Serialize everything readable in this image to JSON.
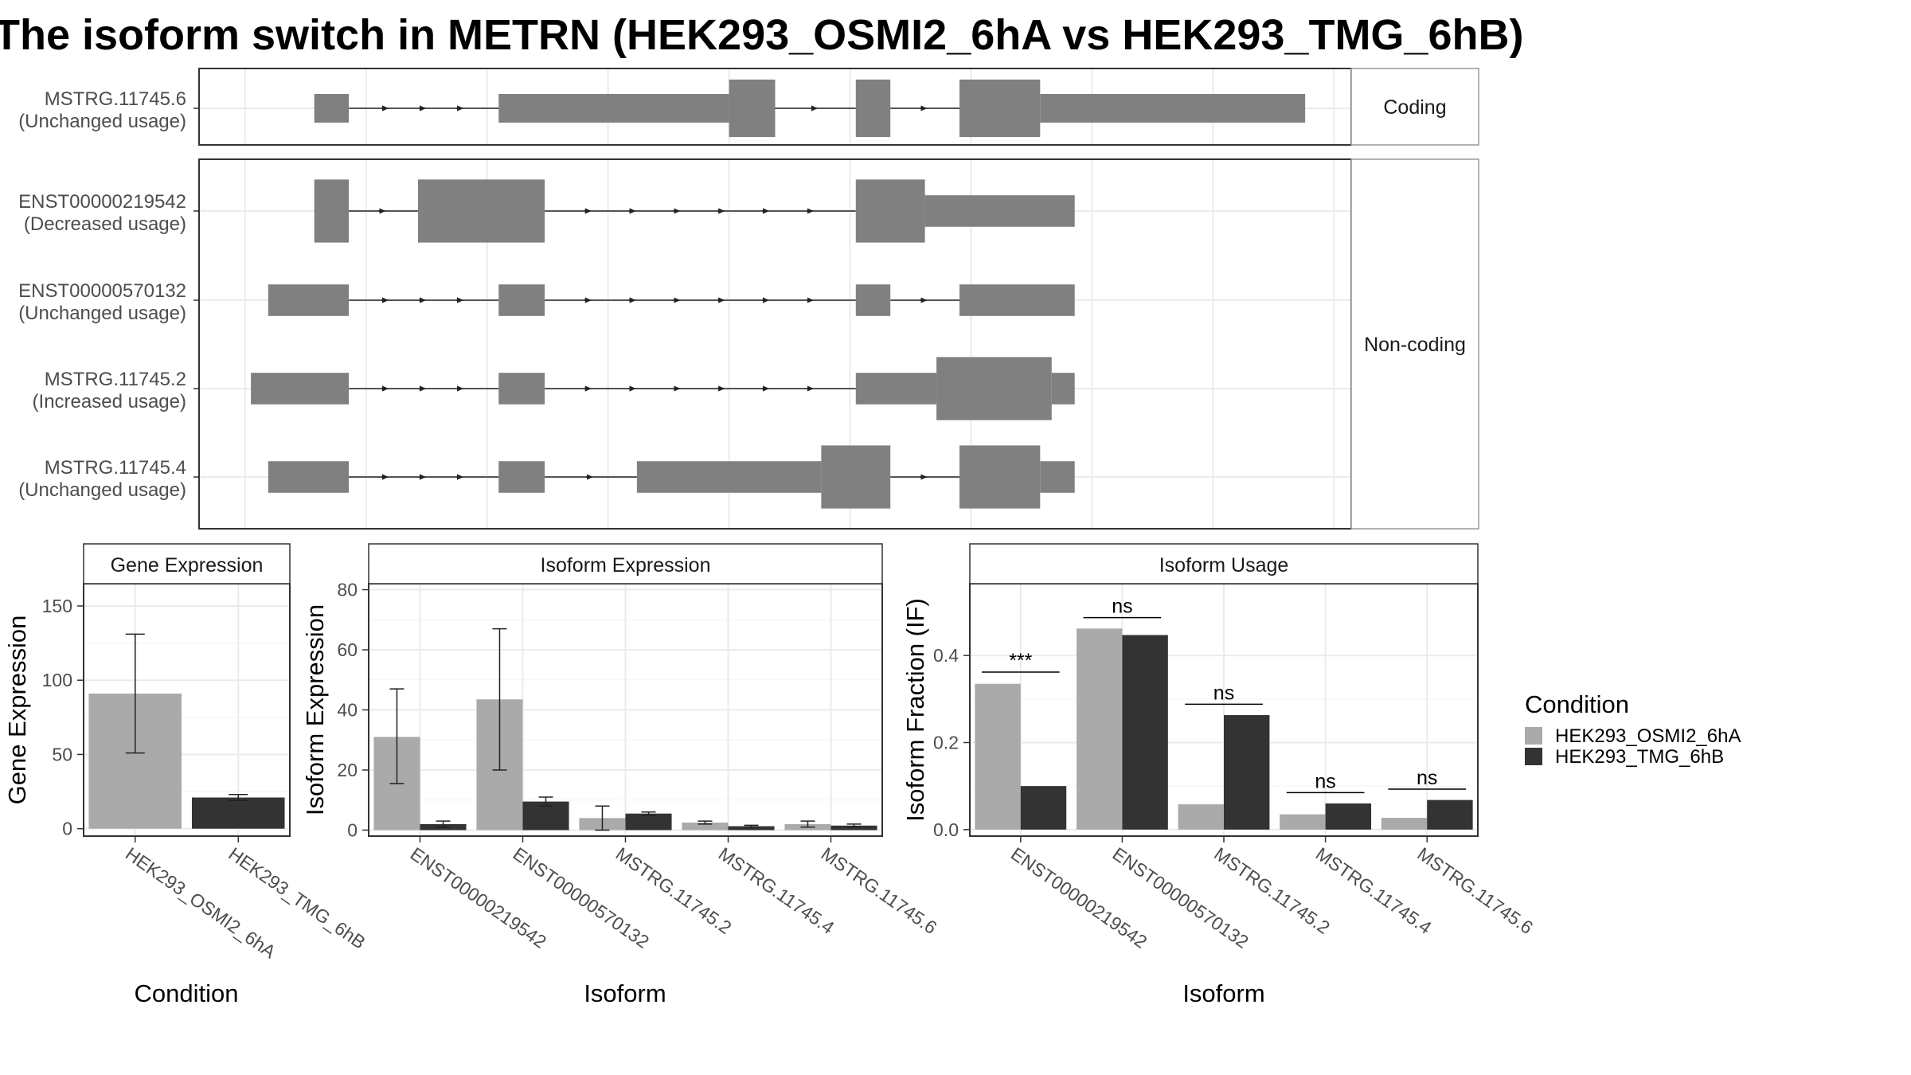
{
  "title": "The isoform switch in METRN (HEK293_OSMI2_6hA vs HEK293_TMG_6hB)",
  "colors": {
    "cond_a": "#aaaaaa",
    "cond_b": "#333333",
    "exon": "#808080"
  },
  "legend": {
    "title": "Condition",
    "items": [
      "HEK293_OSMI2_6hA",
      "HEK293_TMG_6hB"
    ]
  },
  "structure": {
    "facets": [
      {
        "label": "Coding",
        "transcripts": [
          {
            "id": "MSTRG.11745.6",
            "usage": "(Unchanged usage)",
            "exons": [
              [
                0.1,
                0.13,
                0.2
              ],
              [
                0.26,
                0.46,
                0.2
              ],
              [
                0.46,
                0.5,
                0.4
              ],
              [
                0.57,
                0.6,
                0.4
              ],
              [
                0.66,
                0.73,
                0.4
              ],
              [
                0.73,
                0.96,
                0.2
              ]
            ]
          }
        ]
      },
      {
        "label": "Non-coding",
        "transcripts": [
          {
            "id": "ENST00000219542",
            "usage": "(Decreased usage)",
            "exons": [
              [
                0.1,
                0.13,
                0.4
              ],
              [
                0.19,
                0.3,
                0.4
              ],
              [
                0.57,
                0.63,
                0.4
              ],
              [
                0.63,
                0.76,
                0.2
              ]
            ]
          },
          {
            "id": "ENST00000570132",
            "usage": "(Unchanged usage)",
            "exons": [
              [
                0.06,
                0.13,
                0.2
              ],
              [
                0.26,
                0.3,
                0.2
              ],
              [
                0.57,
                0.6,
                0.2
              ],
              [
                0.66,
                0.76,
                0.2
              ]
            ]
          },
          {
            "id": "MSTRG.11745.2",
            "usage": "(Increased usage)",
            "exons": [
              [
                0.045,
                0.13,
                0.2
              ],
              [
                0.26,
                0.3,
                0.2
              ],
              [
                0.57,
                0.64,
                0.2
              ],
              [
                0.64,
                0.74,
                0.4
              ],
              [
                0.74,
                0.76,
                0.2
              ]
            ]
          },
          {
            "id": "MSTRG.11745.4",
            "usage": "(Unchanged usage)",
            "exons": [
              [
                0.06,
                0.13,
                0.2
              ],
              [
                0.26,
                0.3,
                0.2
              ],
              [
                0.38,
                0.54,
                0.2
              ],
              [
                0.54,
                0.6,
                0.4
              ],
              [
                0.66,
                0.73,
                0.4
              ],
              [
                0.73,
                0.76,
                0.2
              ]
            ]
          }
        ]
      }
    ]
  },
  "chart_data": [
    {
      "type": "bar",
      "title": "Gene Expression",
      "xlabel": "Condition",
      "ylabel": "Gene Expression",
      "categories": [
        "HEK293_OSMI2_6hA",
        "HEK293_TMG_6hB"
      ],
      "values": [
        91,
        21
      ],
      "error": [
        [
          51,
          131
        ],
        [
          19,
          23
        ]
      ],
      "ylim": [
        -5,
        165
      ],
      "yticks": [
        0,
        50,
        100,
        150
      ],
      "yticklabels": [
        "0",
        "50",
        "100",
        "150"
      ]
    },
    {
      "type": "bar",
      "title": "Isoform Expression",
      "xlabel": "Isoform",
      "ylabel": "Isoform Expression",
      "categories": [
        "ENST00000219542",
        "ENST00000570132",
        "MSTRG.11745.2",
        "MSTRG.11745.4",
        "MSTRG.11745.6"
      ],
      "series": [
        {
          "name": "HEK293_OSMI2_6hA",
          "values": [
            31,
            43.5,
            4,
            2.5,
            2
          ],
          "error": [
            [
              15.5,
              47
            ],
            [
              20,
              67
            ],
            [
              0,
              8
            ],
            [
              2,
              3
            ],
            [
              1,
              3
            ]
          ]
        },
        {
          "name": "HEK293_TMG_6hB",
          "values": [
            2,
            9.5,
            5.5,
            1.3,
            1.5
          ],
          "error": [
            [
              1,
              3
            ],
            [
              8,
              11
            ],
            [
              5,
              6
            ],
            [
              1,
              1.6
            ],
            [
              1,
              2
            ]
          ]
        }
      ],
      "ylim": [
        -2,
        82
      ],
      "yticks": [
        0,
        20,
        40,
        60,
        80
      ],
      "yticklabels": [
        "0",
        "20",
        "40",
        "60",
        "80"
      ]
    },
    {
      "type": "bar",
      "title": "Isoform Usage",
      "xlabel": "Isoform",
      "ylabel": "Isoform Fraction (IF)",
      "categories": [
        "ENST00000219542",
        "ENST00000570132",
        "MSTRG.11745.2",
        "MSTRG.11745.4",
        "MSTRG.11745.6"
      ],
      "series": [
        {
          "name": "HEK293_OSMI2_6hA",
          "values": [
            0.335,
            0.462,
            0.058,
            0.035,
            0.027
          ]
        },
        {
          "name": "HEK293_TMG_6hB",
          "values": [
            0.1,
            0.447,
            0.263,
            0.06,
            0.068
          ]
        }
      ],
      "significance": [
        "***",
        "ns",
        "ns",
        "ns",
        "ns"
      ],
      "sig_y": [
        0.362,
        0.487,
        0.288,
        0.085,
        0.093
      ],
      "ylim": [
        -0.015,
        0.565
      ],
      "yticks": [
        0,
        0.2,
        0.4
      ],
      "yticklabels": [
        "0.0",
        "0.2",
        "0.4"
      ]
    }
  ]
}
